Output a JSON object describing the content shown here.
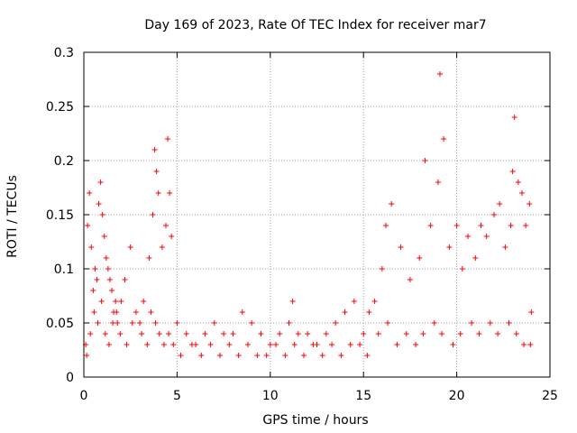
{
  "chart_data": {
    "type": "scatter",
    "title": "Day 169 of 2023, Rate Of TEC Index for receiver mar7",
    "xlabel": "GPS time / hours",
    "ylabel": "ROTI / TECUs",
    "xlim": [
      0,
      25
    ],
    "ylim": [
      0,
      0.3
    ],
    "x_ticks": [
      0,
      5,
      10,
      15,
      20,
      25
    ],
    "y_ticks": [
      0,
      0.05,
      0.1,
      0.15,
      0.2,
      0.25,
      0.3
    ],
    "x_tick_labels": [
      "0",
      "5",
      "10",
      "15",
      "20",
      "25"
    ],
    "y_tick_labels": [
      "0",
      "0.05",
      "0.1",
      "0.15",
      "0.2",
      "0.25",
      "0.3"
    ],
    "grid": true,
    "marker": "plus",
    "marker_color": "#ff0000",
    "series": [
      {
        "x": [
          0.1,
          0.2,
          0.3,
          0.4,
          0.5,
          0.6,
          0.7,
          0.8,
          0.9,
          1.0,
          1.1,
          1.2,
          1.3,
          1.4,
          1.5,
          1.6,
          1.7,
          1.8,
          2.0,
          2.2,
          2.5,
          2.8,
          3.0,
          3.2,
          3.5,
          3.7,
          3.8,
          3.9,
          4.0,
          4.2,
          4.4,
          4.5,
          4.6,
          4.7,
          5.0,
          5.5,
          6.0,
          6.5,
          7.0,
          7.5,
          8.0,
          8.5,
          9.0,
          9.5,
          10.0,
          10.5,
          11.0,
          11.2,
          11.5,
          12.0,
          12.5,
          13.0,
          13.5,
          14.0,
          14.5,
          15.0,
          15.3,
          15.6,
          16.0,
          16.2,
          16.5,
          17.0,
          17.5,
          18.0,
          18.3,
          18.6,
          19.0,
          19.1,
          19.3,
          19.6,
          20.0,
          20.3,
          20.6,
          21.0,
          21.3,
          21.6,
          22.0,
          22.3,
          22.6,
          22.9,
          23.0,
          23.1,
          23.3,
          23.5,
          23.7,
          23.9,
          24.0,
          0.15,
          0.35,
          0.55,
          0.75,
          0.95,
          1.15,
          1.35,
          1.55,
          1.75,
          1.95,
          2.3,
          2.6,
          3.1,
          3.4,
          3.6,
          3.85,
          4.05,
          4.3,
          4.55,
          4.8,
          5.2,
          5.8,
          6.3,
          6.8,
          7.3,
          7.8,
          8.3,
          8.8,
          9.3,
          9.8,
          10.3,
          10.8,
          11.3,
          11.8,
          12.3,
          12.8,
          13.3,
          13.8,
          14.3,
          14.8,
          15.2,
          15.8,
          16.3,
          16.8,
          17.3,
          17.8,
          18.2,
          18.8,
          19.2,
          19.8,
          20.2,
          20.8,
          21.2,
          21.8,
          22.2,
          22.8,
          23.2,
          23.6,
          23.95
        ],
        "y": [
          0.03,
          0.14,
          0.17,
          0.12,
          0.08,
          0.1,
          0.09,
          0.16,
          0.18,
          0.15,
          0.13,
          0.11,
          0.1,
          0.09,
          0.08,
          0.06,
          0.07,
          0.05,
          0.07,
          0.09,
          0.12,
          0.06,
          0.05,
          0.07,
          0.11,
          0.15,
          0.21,
          0.19,
          0.17,
          0.12,
          0.14,
          0.22,
          0.17,
          0.13,
          0.05,
          0.04,
          0.03,
          0.04,
          0.05,
          0.04,
          0.04,
          0.06,
          0.05,
          0.04,
          0.03,
          0.04,
          0.05,
          0.07,
          0.04,
          0.04,
          0.03,
          0.04,
          0.05,
          0.06,
          0.07,
          0.04,
          0.06,
          0.07,
          0.1,
          0.14,
          0.16,
          0.12,
          0.09,
          0.11,
          0.2,
          0.14,
          0.18,
          0.28,
          0.22,
          0.12,
          0.14,
          0.1,
          0.13,
          0.11,
          0.14,
          0.13,
          0.15,
          0.16,
          0.12,
          0.14,
          0.19,
          0.24,
          0.18,
          0.17,
          0.14,
          0.16,
          0.06,
          0.02,
          0.04,
          0.06,
          0.05,
          0.07,
          0.04,
          0.03,
          0.05,
          0.06,
          0.04,
          0.03,
          0.05,
          0.04,
          0.03,
          0.06,
          0.05,
          0.04,
          0.03,
          0.04,
          0.03,
          0.02,
          0.03,
          0.02,
          0.03,
          0.02,
          0.03,
          0.02,
          0.03,
          0.02,
          0.02,
          0.03,
          0.02,
          0.03,
          0.02,
          0.03,
          0.02,
          0.03,
          0.02,
          0.03,
          0.03,
          0.02,
          0.04,
          0.05,
          0.03,
          0.04,
          0.03,
          0.04,
          0.05,
          0.04,
          0.03,
          0.04,
          0.05,
          0.04,
          0.05,
          0.04,
          0.05,
          0.04,
          0.03,
          0.03
        ]
      }
    ]
  }
}
